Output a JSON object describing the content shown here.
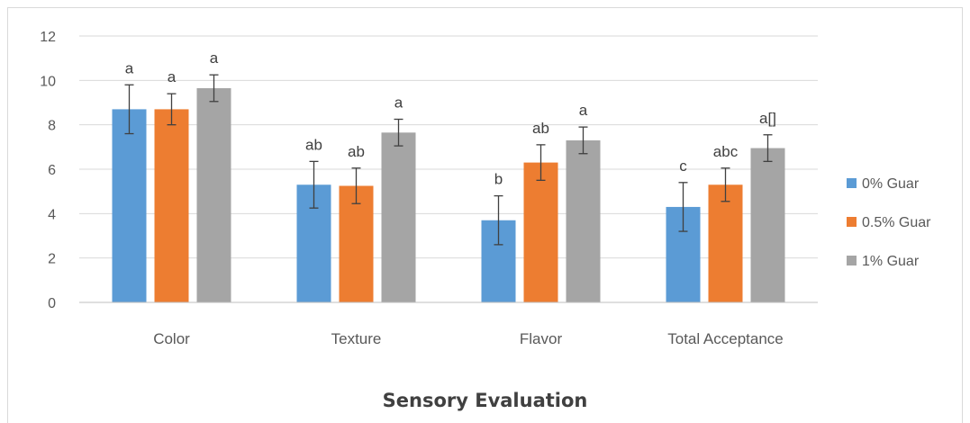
{
  "chart_data": {
    "type": "bar",
    "title": "Sensory Evaluation",
    "categories": [
      "Color",
      "Texture",
      "Flavor",
      "Total Acceptance"
    ],
    "ylim": [
      0,
      12
    ],
    "yticks": [
      0,
      2,
      4,
      6,
      8,
      10,
      12
    ],
    "grid": true,
    "legend_position": "right",
    "series": [
      {
        "name": "0% Guar",
        "color": "#5b9bd5",
        "values": [
          8.7,
          5.3,
          3.7,
          4.3
        ],
        "errors": [
          1.1,
          1.05,
          1.1,
          1.1
        ],
        "labels": [
          "a",
          "ab",
          "b",
          "c"
        ]
      },
      {
        "name": "0.5% Guar",
        "color": "#ed7d31",
        "values": [
          8.7,
          5.25,
          6.3,
          5.3
        ],
        "errors": [
          0.7,
          0.8,
          0.8,
          0.75
        ],
        "labels": [
          "a",
          "ab",
          "ab",
          "abc"
        ]
      },
      {
        "name": "1% Guar",
        "color": "#a5a5a5",
        "values": [
          9.65,
          7.65,
          7.3,
          6.95
        ],
        "errors": [
          0.6,
          0.6,
          0.6,
          0.6
        ],
        "labels": [
          "a",
          "a",
          "a",
          "a[]"
        ]
      }
    ]
  }
}
